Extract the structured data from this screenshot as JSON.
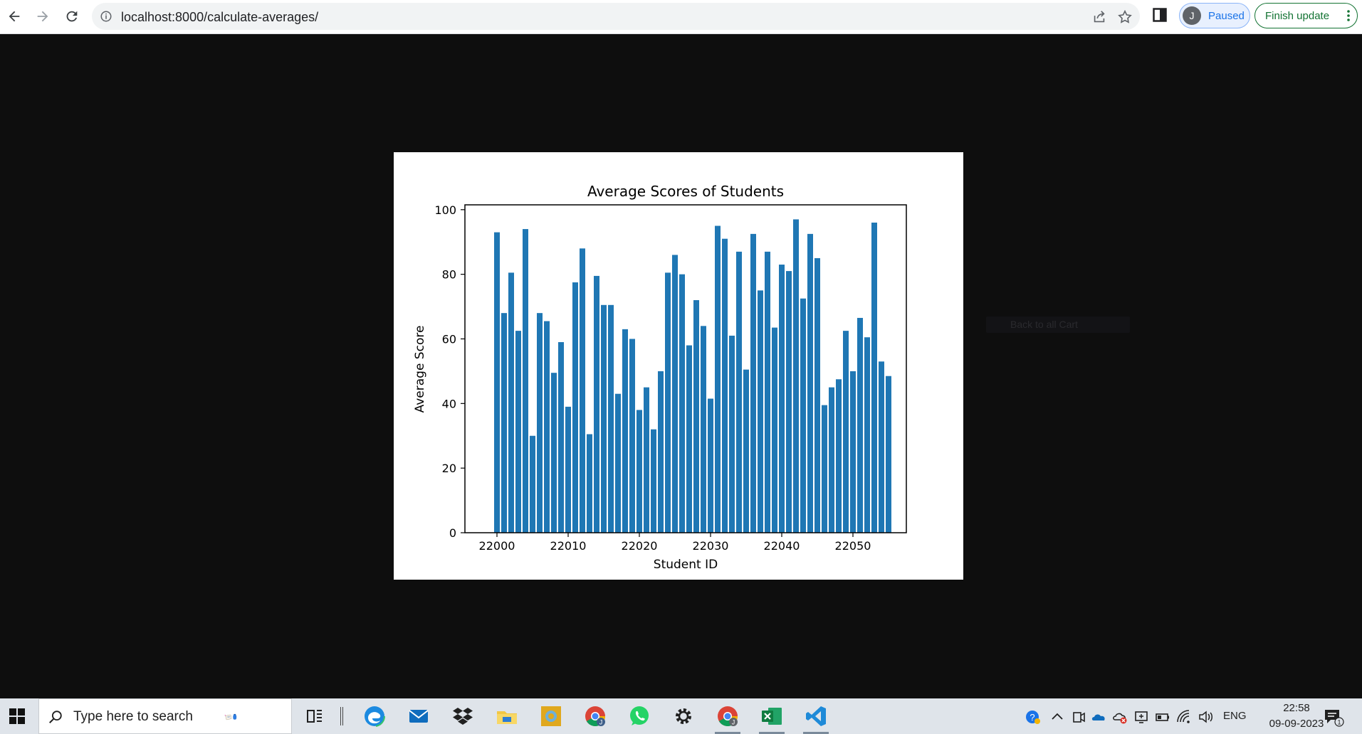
{
  "browser": {
    "url": "localhost:8000/calculate-averages/",
    "profile_initial": "J",
    "profile_status": "Paused",
    "finish_update_label": "Finish update"
  },
  "ghost_tooltip": "Back to all Cart",
  "chart_data": {
    "type": "bar",
    "title": "Average Scores of Students",
    "xlabel": "Student ID",
    "ylabel": "Average Score",
    "x": [
      22000,
      22001,
      22002,
      22003,
      22004,
      22005,
      22006,
      22007,
      22008,
      22009,
      22010,
      22011,
      22012,
      22013,
      22014,
      22015,
      22016,
      22017,
      22018,
      22019,
      22020,
      22021,
      22022,
      22023,
      22024,
      22025,
      22026,
      22027,
      22028,
      22029,
      22030,
      22031,
      22032,
      22033,
      22034,
      22035,
      22036,
      22037,
      22038,
      22039,
      22040,
      22041,
      22042,
      22043,
      22044,
      22045,
      22046,
      22047,
      22048,
      22049,
      22050,
      22051,
      22052,
      22053,
      22054,
      22055
    ],
    "values": [
      93,
      68,
      80.5,
      62.5,
      94,
      30,
      68,
      65.5,
      49.5,
      59,
      39,
      77.5,
      88,
      30.5,
      79.5,
      70.5,
      70.5,
      43,
      63,
      60,
      38,
      45,
      32,
      50,
      80.5,
      86,
      80,
      58,
      72,
      64,
      41.5,
      95,
      91,
      61,
      87,
      50.5,
      92.5,
      75,
      87,
      63.5,
      83,
      81,
      97,
      72.5,
      92.5,
      85,
      39.5,
      45,
      47.5,
      62.5,
      50,
      66.5,
      60.5,
      96,
      53,
      48.5
    ],
    "xticks": [
      22000,
      22010,
      22020,
      22030,
      22040,
      22050
    ],
    "xtick_labels": [
      "22000",
      "22010",
      "22020",
      "22030",
      "22040",
      "22050"
    ],
    "yticks": [
      0,
      20,
      40,
      60,
      80,
      100
    ],
    "ytick_labels": [
      "0",
      "20",
      "40",
      "60",
      "80",
      "100"
    ],
    "xlim": [
      21995.5,
      22057.5
    ],
    "ylim": [
      0,
      101.5
    ],
    "bar_color": "#1f77b4",
    "grid": false
  },
  "taskbar": {
    "search_placeholder": "Type here to search",
    "apps": [
      "task-view-icon",
      "edge-icon",
      "mail-icon",
      "dropbox-icon",
      "file-explorer-icon",
      "photos-icon",
      "chrome-icon",
      "whatsapp-icon",
      "settings-icon",
      "chrome-profile-icon",
      "excel-icon",
      "vscode-icon"
    ],
    "language": "ENG",
    "time": "22:58",
    "date": "09-09-2023",
    "notification_count": "1"
  }
}
